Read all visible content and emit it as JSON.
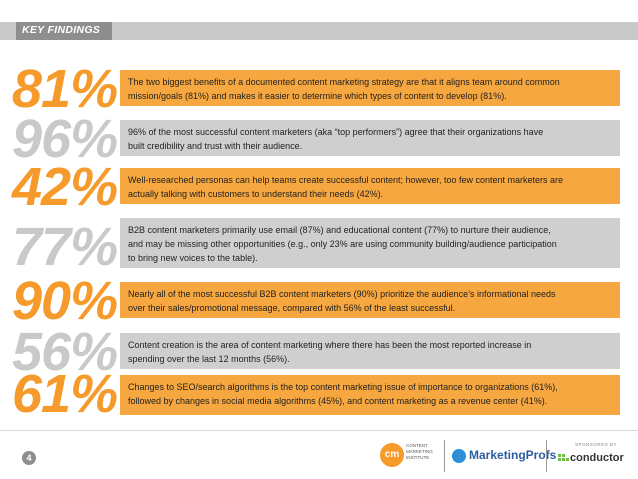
{
  "header": {
    "label": "KEY FINDINGS"
  },
  "findings": [
    {
      "stat": "81%",
      "lines": [
        "The two biggest benefits of a documented content marketing strategy are that it aligns team around common",
        "mission/goals (81%) and makes it easier to determine which types of content to develop (81%)."
      ]
    },
    {
      "stat": "96%",
      "lines": [
        "96% of the most successful content marketers (aka “top performers”) agree that their organizations have",
        "built credibility and trust with their audience."
      ]
    },
    {
      "stat": "42%",
      "lines": [
        "Well-researched personas can help teams create successful content; however, too few content marketers are",
        "actually talking with customers to understand their needs (42%)."
      ]
    },
    {
      "stat": "77%",
      "lines": [
        "B2B content marketers primarily use email (87%) and educational content (77%) to nurture their audience,",
        "and may be missing other opportunities (e.g., only 23% are using community building/audience participation",
        "to bring new voices to the table)."
      ]
    },
    {
      "stat": "90%",
      "lines": [
        "Nearly all of the most successful B2B content marketers (90%) prioritize the audience’s informational needs",
        "over their sales/promotional message, compared with 56% of the least successful."
      ]
    },
    {
      "stat": "56%",
      "lines": [
        "Content creation is the area of content marketing where there has been the most reported increase in",
        "spending over the last 12 months (56%)."
      ]
    },
    {
      "stat": "61%",
      "lines": [
        "Changes to SEO/search algorithms is the top content marketing issue of importance to organizations (61%),",
        "followed by changes in social media algorithms (45%), and content marketing as a revenue center (41%)."
      ]
    }
  ],
  "footer": {
    "page_number": "4",
    "cmi_mark": "cm",
    "cmi_lines": [
      "CONTENT",
      "MARKETING",
      "INSTITUTE"
    ],
    "marketingprofs": "MarketingProfs",
    "sponsored_by": "SPONSORED BY",
    "conductor": "conductor"
  },
  "colors": {
    "orange": "#f59a2b",
    "orange_box": "#f7a73f",
    "grey_stat": "#c9c9c9",
    "grey_box": "#cfcfcf",
    "header_tab": "#8e8e8e"
  }
}
